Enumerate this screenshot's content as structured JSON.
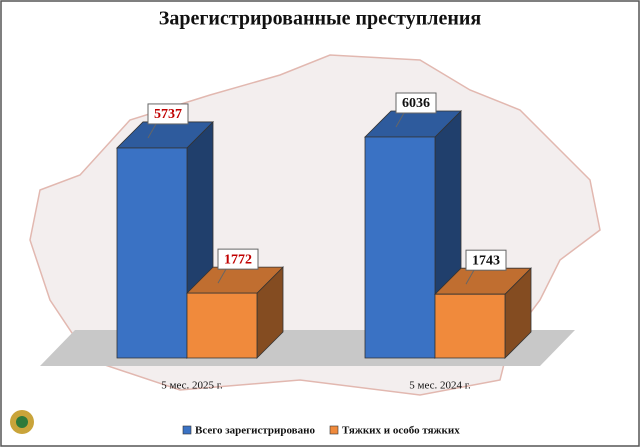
{
  "chart_data": {
    "type": "bar3d",
    "title": "Зарегистрированные преступления",
    "categories": [
      "5 мес. 2025 г.",
      "5 мес. 2024 г."
    ],
    "series": [
      {
        "name": "Всего зарегистрировано",
        "color": "#3a72c4",
        "values": [
          5737,
          6036
        ]
      },
      {
        "name": "Тяжких и особо тяжких",
        "color": "#f08a3c",
        "values": [
          1772,
          1743
        ]
      }
    ]
  }
}
